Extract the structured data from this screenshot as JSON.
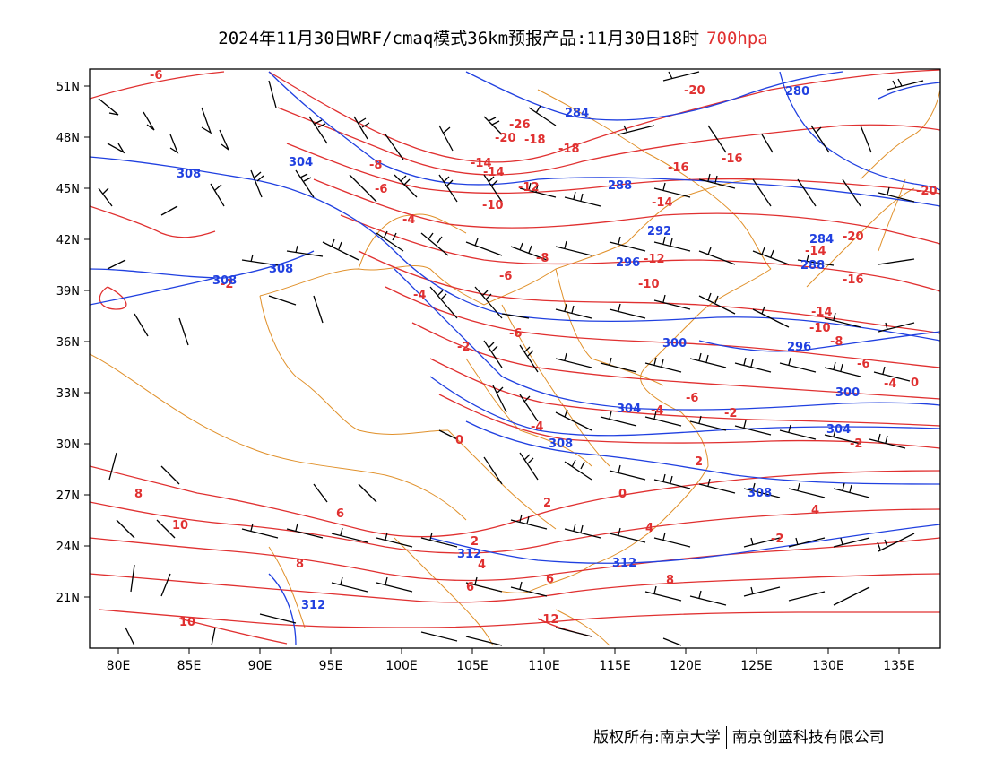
{
  "title": {
    "text": "2024年11月30日WRF/cmaq模式36km预报产品:11月30日18时",
    "level": "700hpa",
    "level_color": "#e03030"
  },
  "axes": {
    "lat_labels": [
      "51N",
      "48N",
      "45N",
      "42N",
      "39N",
      "36N",
      "33N",
      "30N",
      "27N",
      "24N",
      "21N"
    ],
    "lon_labels": [
      "80E",
      "85E",
      "90E",
      "95E",
      "100E",
      "105E",
      "110E",
      "115E",
      "120E",
      "125E",
      "130E",
      "135E"
    ]
  },
  "colors": {
    "temperature": "#e03030",
    "geopotential": "#2040e0",
    "boundary": "#e0902a",
    "wind_barb": "#000000"
  },
  "temperature_labels": [
    "-6",
    "-26",
    "-20",
    "-20",
    "-18",
    "-16",
    "-16",
    "-18",
    "-20",
    "-14",
    "-14",
    "-12",
    "-10",
    "-14",
    "-8",
    "-6",
    "-4",
    "-2",
    "-4",
    "-2",
    "-6",
    "-8",
    "-6",
    "-10",
    "-12",
    "-14",
    "-20",
    "-14",
    "-16",
    "-10",
    "-8",
    "-6",
    "-4",
    "0",
    "-6",
    "-2",
    "-4",
    "0",
    "-4",
    "-2",
    "2",
    "0",
    "2",
    "4",
    "6",
    "8",
    "10",
    "8",
    "6",
    "4",
    "2",
    "4",
    "6",
    "8",
    "10",
    "-2",
    "-12"
  ],
  "geopotential_labels": [
    "284",
    "280",
    "304",
    "308",
    "288",
    "292",
    "308",
    "308",
    "296",
    "284",
    "288",
    "300",
    "296",
    "300",
    "304",
    "304",
    "308",
    "308",
    "312",
    "312",
    "312"
  ],
  "footer": {
    "left": "版权所有:南京大学",
    "right": "南京创蓝科技有限公司"
  }
}
